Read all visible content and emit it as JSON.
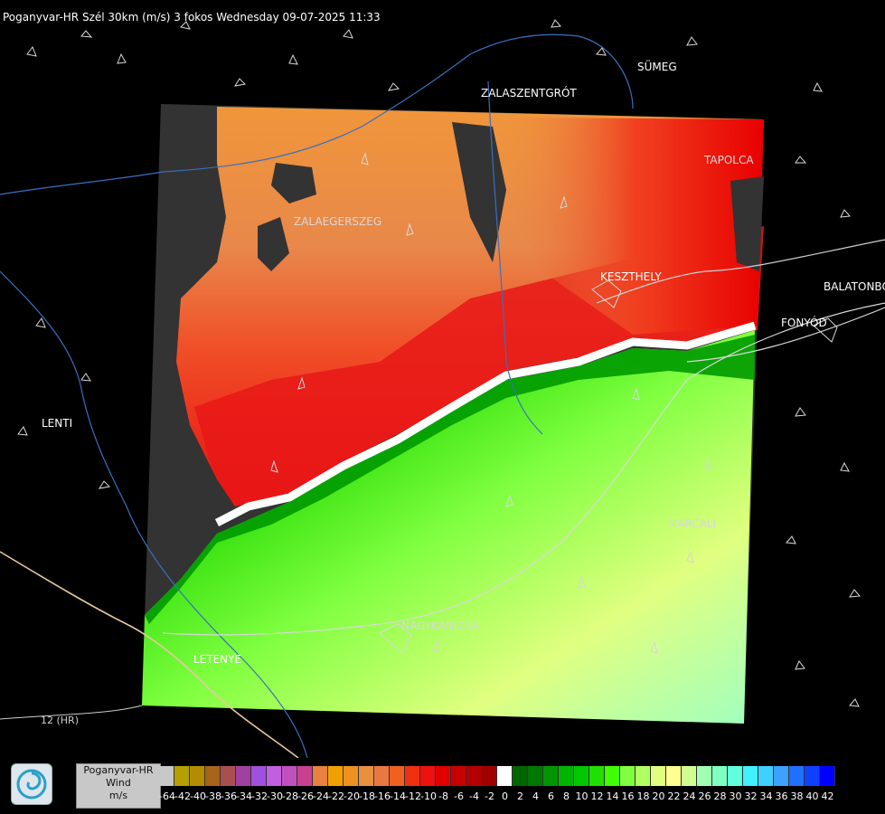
{
  "title": "Poganyvar-HR Szél 30km (m/s) 3 fokos Wednesday 09-07-2025 11:33",
  "towns": {
    "sumeg": "SÜMEG",
    "zalaszentgrot": "ZALASZENTGRÓT",
    "tapolca": "TAPOLCA",
    "zalaegerszeg": "ZALAEGERSZEG",
    "keszthely": "KESZTHELY",
    "balatonboglar": "BALATONBO",
    "fonyod": "FONYÓD",
    "lenti": "LENTI",
    "marcali": "MARCALI",
    "nagykanizsa": "NAGYKANIZSA",
    "letenye": "LETENYE"
  },
  "road_label": "12 (HR)",
  "legend": {
    "station": "Poganyvar-HR",
    "quantity": "Wind",
    "unit": "m/s",
    "ticks": [
      "-64",
      "-42",
      "-40",
      "-38",
      "-36",
      "-34",
      "-32",
      "-30",
      "-28",
      "-26",
      "-24",
      "-22",
      "-20",
      "-18",
      "-16",
      "-14",
      "-12",
      "-10",
      "-8",
      "-6",
      "-4",
      "-2",
      "0",
      "2",
      "4",
      "6",
      "8",
      "10",
      "12",
      "14",
      "16",
      "18",
      "20",
      "22",
      "24",
      "26",
      "28",
      "30",
      "32",
      "34",
      "36",
      "38",
      "40",
      "42"
    ],
    "colors": [
      "#c8c8c8",
      "#b4a000",
      "#b48c00",
      "#a86418",
      "#a85050",
      "#a040a0",
      "#a050e0",
      "#c060e0",
      "#c050c0",
      "#c84090",
      "#e88040",
      "#f0a000",
      "#f09020",
      "#e89040",
      "#e87840",
      "#f06020",
      "#f03010",
      "#f01010",
      "#e00000",
      "#c80000",
      "#b40000",
      "#a00000",
      "#ffffff",
      "#006400",
      "#007800",
      "#009600",
      "#00b400",
      "#00c800",
      "#20e000",
      "#40ff00",
      "#80ff40",
      "#b0ff60",
      "#e0ff80",
      "#ffff90",
      "#d0ff90",
      "#a0ffb0",
      "#80ffc0",
      "#60ffe0",
      "#40f0ff",
      "#40d0ff",
      "#40a0ff",
      "#2070ff",
      "#1040ff",
      "#0000ff"
    ]
  }
}
